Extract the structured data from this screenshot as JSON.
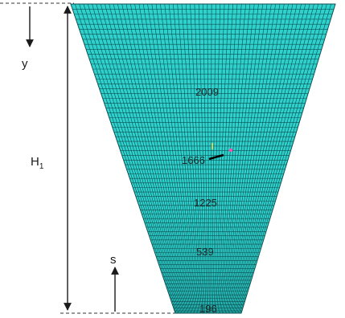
{
  "labels": {
    "y_axis": "y",
    "height": "H",
    "height_subscript": "1",
    "s_axis": "s"
  },
  "node_labels": [
    "2009",
    "1666",
    "1225",
    "539",
    "196"
  ],
  "colors": {
    "mesh_fill": "#2fd1cc",
    "mesh_line": "#0d4f52",
    "arrow": "#1a1a1a",
    "dashed_line": "#333333",
    "marker": "#ff4fb2"
  }
}
